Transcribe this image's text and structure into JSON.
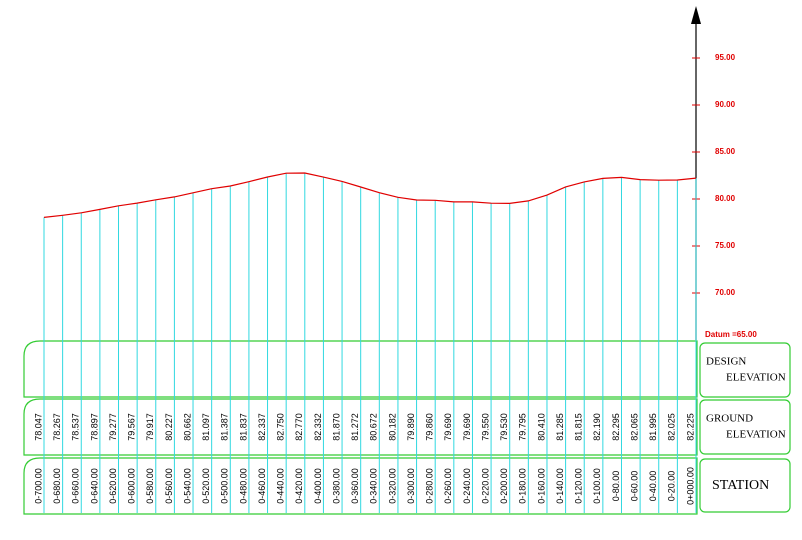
{
  "chart_data": {
    "type": "line",
    "datum_label": "Datum =65.00",
    "categories": [
      "0-700.00",
      "0-680.00",
      "0-660.00",
      "0-640.00",
      "0-620.00",
      "0-600.00",
      "0-580.00",
      "0-560.00",
      "0-540.00",
      "0-520.00",
      "0-500.00",
      "0-480.00",
      "0-460.00",
      "0-440.00",
      "0-420.00",
      "0-400.00",
      "0-380.00",
      "0-360.00",
      "0-340.00",
      "0-320.00",
      "0-300.00",
      "0-280.00",
      "0-260.00",
      "0-240.00",
      "0-220.00",
      "0-200.00",
      "0-180.00",
      "0-160.00",
      "0-140.00",
      "0-120.00",
      "0-100.00",
      "0-80.00",
      "0-60.00",
      "0-40.00",
      "0-20.00",
      "0+000.00"
    ],
    "values": [
      78.047,
      78.267,
      78.537,
      78.897,
      79.277,
      79.567,
      79.917,
      80.227,
      80.662,
      81.097,
      81.387,
      81.837,
      82.337,
      82.75,
      82.77,
      82.332,
      81.87,
      81.272,
      80.672,
      80.182,
      79.89,
      79.86,
      79.69,
      79.69,
      79.55,
      79.53,
      79.795,
      80.41,
      81.285,
      81.815,
      82.19,
      82.295,
      82.065,
      81.995,
      82.025,
      82.225
    ],
    "value_labels": [
      "78.047",
      "78.267",
      "78.537",
      "78.897",
      "79.277",
      "79.567",
      "79.917",
      "80.227",
      "80.662",
      "81.097",
      "81.387",
      "81.837",
      "82.337",
      "82.750",
      "82.770",
      "82.332",
      "81.870",
      "81.272",
      "80.672",
      "80.182",
      "79.890",
      "79.860",
      "79.690",
      "79.690",
      "79.550",
      "79.530",
      "79.795",
      "80.410",
      "81.285",
      "81.815",
      "82.190",
      "82.295",
      "82.065",
      "81.995",
      "82.025",
      "82.225"
    ],
    "color": "#e00000",
    "station_line_color": "#30d8e0",
    "ylim": [
      65,
      100
    ],
    "yticks": [
      {
        "value": 70,
        "label": "70.00"
      },
      {
        "value": 75,
        "label": "75.00"
      },
      {
        "value": 80,
        "label": "80.00"
      },
      {
        "value": 85,
        "label": "85.00"
      },
      {
        "value": 90,
        "label": "90.00"
      },
      {
        "value": 95,
        "label": "95.00"
      }
    ],
    "row_labels": {
      "design": [
        "DESIGN",
        "ELEVATION"
      ],
      "ground": [
        "GROUND",
        "ELEVATION"
      ],
      "station": [
        "STATION"
      ]
    }
  }
}
